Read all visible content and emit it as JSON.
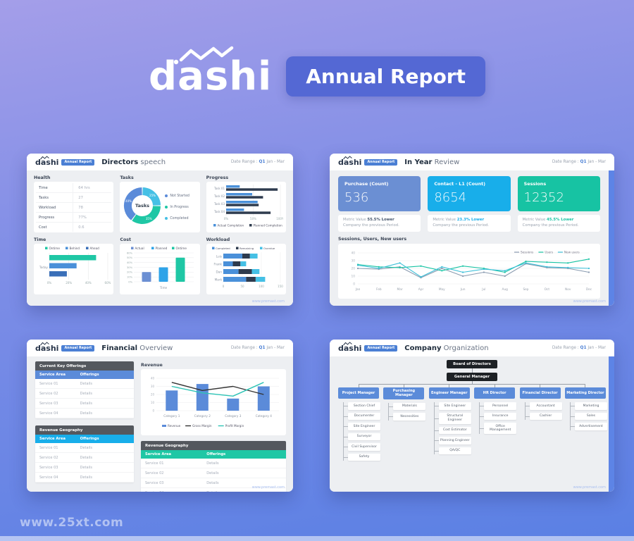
{
  "page": {
    "brand": "dashi",
    "banner": "Annual Report",
    "watermark": "www.25xt.com"
  },
  "common": {
    "logo": "dashi",
    "badge": "Annual Report",
    "date_label": "Date Range :",
    "date_q": "Q1",
    "date_rest": "Jan - Mar",
    "site": "www.premast.com"
  },
  "slide1": {
    "title_bold": "Directors",
    "title_light": "speech",
    "panels": {
      "health": {
        "title": "Health",
        "rows": [
          {
            "label": "Time",
            "value": "64 hrs"
          },
          {
            "label": "Tasks",
            "value": "27"
          },
          {
            "label": "Workload",
            "value": "78"
          },
          {
            "label": "Progress",
            "value": "77%"
          },
          {
            "label": "Cost",
            "value": "0.6"
          }
        ]
      },
      "tasks_title": "Tasks",
      "progress_title": "Progress",
      "time_title": "Time",
      "cost_title": "Cost",
      "workload_title": "Workload"
    }
  },
  "slide2": {
    "title_bold": "In Year",
    "title_light": "Review",
    "kpis": [
      {
        "label": "Purchase (Count)",
        "value": "536",
        "color": "#6b8fd3",
        "metric_prefix": "Metric Value",
        "metric_bold": "55.5% Lower",
        "metric_color": "#44546a",
        "metric_line2": "Company the previous Period."
      },
      {
        "label": "Contact - L1 (Count)",
        "value": "8654",
        "color": "#18aeea",
        "metric_prefix": "Metric Value",
        "metric_bold": "23.3% Lower",
        "metric_color": "#18aeea",
        "metric_line2": "Company the previous Period."
      },
      {
        "label": "Sessions",
        "value": "12352",
        "color": "#17c3a3",
        "metric_prefix": "Metric Value",
        "metric_bold": "45.5% Lower",
        "metric_color": "#17c3a3",
        "metric_line2": "Company the previous Period."
      }
    ],
    "chart_title": "Sessions, Users, New users"
  },
  "slide3": {
    "title_bold": "Financial",
    "title_light": "Overview",
    "revenue_title": "Revenue",
    "tables": [
      {
        "title": "Current Key Offerings",
        "header_color": "#5b8bd9",
        "columns": [
          "Service Area",
          "Offerings"
        ],
        "rows": [
          [
            "Service 01",
            "Details"
          ],
          [
            "Service 02",
            "Details"
          ],
          [
            "Service 03",
            "Details"
          ],
          [
            "Service 04",
            "Details"
          ]
        ]
      },
      {
        "title": "Revenue Geography",
        "header_color": "#18aeea",
        "columns": [
          "Service Area",
          "Offerings"
        ],
        "rows": [
          [
            "Service 01",
            "Details"
          ],
          [
            "Service 02",
            "Details"
          ],
          [
            "Service 03",
            "Details"
          ],
          [
            "Service 04",
            "Details"
          ]
        ]
      },
      {
        "title": "Revenue Geography",
        "header_color": "#1fc7a5",
        "columns": [
          "Service Area",
          "Offerings"
        ],
        "rows": [
          [
            "Service 01",
            "Details"
          ],
          [
            "Service 02",
            "Details"
          ],
          [
            "Service 03",
            "Details"
          ],
          [
            "Service 04",
            "Details"
          ]
        ]
      }
    ]
  },
  "slide4": {
    "title_bold": "Company",
    "title_light": "Organization",
    "org": {
      "root": "Board of Directors",
      "manager": "General Manager",
      "branches": [
        {
          "name": "Project Manager",
          "children": [
            "Section Chief",
            "Documenter",
            "Site Engineer",
            "Surveyor",
            "Civil Supervisor",
            "Safety"
          ]
        },
        {
          "name": "Purchasing Manager",
          "children": [
            "Materials",
            "Necessities"
          ]
        },
        {
          "name": "Engineer Manager",
          "children": [
            "Site Engineer",
            "Structural Engineer",
            "Cost Estimator",
            "Planning Engineer",
            "QA/QC"
          ]
        },
        {
          "name": "HR Director",
          "children": [
            "Personnel",
            "Insurance",
            "Office Management"
          ]
        },
        {
          "name": "Financial Director",
          "children": [
            "Accountant",
            "Cashier"
          ]
        },
        {
          "name": "Marketing Director",
          "children": [
            "Marketing",
            "Sales",
            "Advertisement"
          ]
        }
      ]
    }
  },
  "chart_data": [
    {
      "id": "tasks_donut",
      "type": "pie",
      "title": "Tasks",
      "center_label": "Tasks",
      "segments": [
        {
          "label": "Completed",
          "value": 25,
          "color": "#45c0e5"
        },
        {
          "label": "In Progress",
          "value": 35,
          "color": "#1fc7a5"
        },
        {
          "label": "Not Started",
          "value": 40,
          "color": "#5b8bd9"
        }
      ],
      "legend": [
        {
          "label": "Not Started",
          "color": "#5b8bd9"
        },
        {
          "label": "In Progress",
          "color": "#1fc7a5"
        },
        {
          "label": "Completed",
          "color": "#45c0e5"
        }
      ]
    },
    {
      "id": "progress",
      "type": "bar",
      "orientation": "horizontal",
      "title": "Progress",
      "categories": [
        "Task 01",
        "Task 02",
        "Task 03",
        "Task 04"
      ],
      "series": [
        {
          "name": "Actual Completion",
          "color": "#4a90d9",
          "values": [
            25,
            48,
            58,
            33
          ]
        },
        {
          "name": "Planned Completion",
          "color": "#2e3b4e",
          "values": [
            95,
            68,
            60,
            82
          ]
        }
      ],
      "xlim": [
        0,
        100
      ],
      "xticks": [
        "0%",
        "50%",
        "100%"
      ]
    },
    {
      "id": "time",
      "type": "bar",
      "orientation": "horizontal",
      "title": "Time",
      "categories": [
        "Today"
      ],
      "series": [
        {
          "name": "Ontime",
          "color": "#1fc7a5",
          "values": [
            48
          ]
        },
        {
          "name": "Behind",
          "color": "#4a90d9",
          "values": [
            28
          ]
        },
        {
          "name": "Ahead",
          "color": "#3a6fb8",
          "values": [
            18
          ]
        }
      ],
      "xlim": [
        0,
        60
      ],
      "xticks": [
        "0%",
        "20%",
        "40%",
        "60%"
      ]
    },
    {
      "id": "cost",
      "type": "bar",
      "title": "Cost",
      "xlabel": "Time",
      "series": [
        {
          "name": "Actual",
          "color": "#6b8fd3",
          "values": [
            20
          ]
        },
        {
          "name": "Planned",
          "color": "#2ea3e8",
          "values": [
            30
          ]
        },
        {
          "name": "Ontime",
          "color": "#1fc7a5",
          "values": [
            50
          ]
        }
      ],
      "ylim": [
        0,
        60
      ],
      "yticks": [
        "0%",
        "10%",
        "20%",
        "30%",
        "40%",
        "50%",
        "60%"
      ]
    },
    {
      "id": "workload",
      "type": "bar",
      "orientation": "horizontal",
      "stacked": true,
      "title": "Workload",
      "categories": [
        "Luis",
        "Frank",
        "Dan",
        "Mark"
      ],
      "series": [
        {
          "name": "Completed",
          "color": "#4a90d9",
          "values": [
            50,
            25,
            40,
            60
          ]
        },
        {
          "name": "Remaining",
          "color": "#2e3b4e",
          "values": [
            20,
            20,
            35,
            25
          ]
        },
        {
          "name": "Overdue",
          "color": "#45c0e5",
          "values": [
            20,
            15,
            20,
            25
          ]
        }
      ],
      "xlim": [
        0,
        150
      ],
      "xticks": [
        "0",
        "50",
        "100",
        "150"
      ]
    },
    {
      "id": "sessions",
      "type": "line",
      "title": "Sessions, Users, New users",
      "x": [
        "Jan",
        "Feb",
        "Mar",
        "Apr",
        "May",
        "Jun",
        "Jul",
        "Aug",
        "Sep",
        "Oct",
        "Nov",
        "Dec"
      ],
      "series": [
        {
          "name": "Sessions",
          "color": "#8a9bb0",
          "values": [
            20,
            19,
            22,
            8,
            20,
            10,
            15,
            10,
            26,
            21,
            20,
            15
          ]
        },
        {
          "name": "Users",
          "color": "#17c3a3",
          "values": [
            25,
            22,
            21,
            23,
            17,
            23,
            20,
            15,
            29,
            28,
            27,
            32
          ]
        },
        {
          "name": "New users",
          "color": "#3bbfd8",
          "values": [
            24,
            20,
            27,
            9,
            22,
            15,
            19,
            17,
            27,
            22,
            21,
            20
          ]
        }
      ],
      "ylim": [
        0,
        40
      ],
      "yticks": [
        0,
        10,
        20,
        30,
        40
      ],
      "legend_position": "top-right"
    },
    {
      "id": "revenue",
      "type": "combo",
      "title": "Revenue",
      "categories": [
        "Category 1",
        "Category 2",
        "Category 3",
        "Category 4"
      ],
      "bar_series": {
        "name": "Revenue",
        "color": "#5b8bd9",
        "values": [
          25,
          33,
          15,
          30
        ]
      },
      "line_series": [
        {
          "name": "Gross Margin",
          "color": "#333333",
          "values": [
            35,
            25,
            30,
            20
          ]
        },
        {
          "name": "Profit Margin",
          "color": "#2ec4b6",
          "values": [
            30,
            22,
            18,
            35
          ]
        }
      ],
      "ylim": [
        0,
        40
      ],
      "yticks": [
        0,
        10,
        20,
        30,
        40
      ]
    }
  ]
}
